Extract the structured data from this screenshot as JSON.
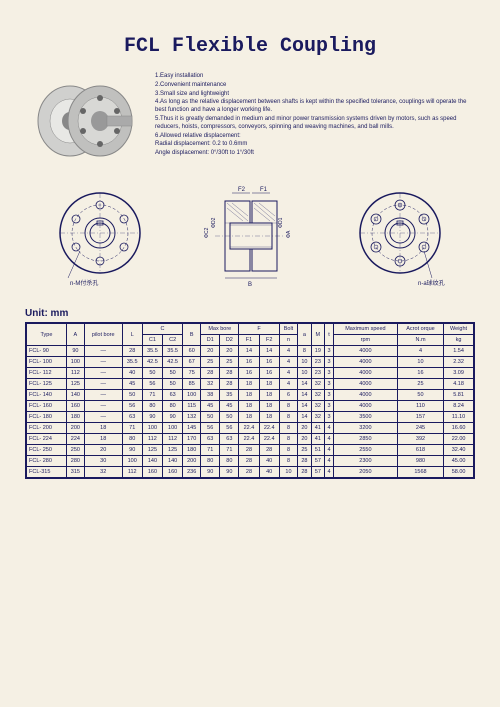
{
  "title": "FCL Flexible Coupling",
  "features": [
    "1.Easy installation",
    "2.Convenient maintenance",
    "3.Small size and lightweight",
    "4.As long as the relative displacement between shafts is kept within the specified tolerance, couplings will operate the best function and have a longer working life.",
    "5.Thus it is greatly demanded in medium and minor power transmission systems driven by motors, such as speed reducers, hoists, compressors, conveyors, spinning and weaving machines, and ball mills.",
    "6.Allowed relative displacement:",
    "Radial displacement: 0.2 to 0.6mm",
    "Angle displacement: 0°/30ft to 1°/30ft"
  ],
  "diagram_labels": {
    "left": "n-M付杀孔",
    "right": "n-a球纹孔",
    "f1": "F1",
    "f2": "F2"
  },
  "unit_label": "Unit: mm",
  "headers": {
    "type": "Type",
    "a_cap": "A",
    "pilot_bore": "pilot bore",
    "l_cap": "L",
    "c_cap": "C",
    "c1": "C1",
    "c2": "C2",
    "b_cap": "B",
    "max_bore": "Max bore",
    "d1": "D1",
    "d2": "D2",
    "f_cap": "F",
    "f1": "F1",
    "f2": "F2",
    "bolt": "Bolt",
    "n": "n",
    "a_low": "a",
    "m_cap": "M",
    "t": "t",
    "max_speed": "Maximum speed",
    "rpm": "rpm",
    "acrot": "Acrot orque",
    "nm": "N.m",
    "weight": "Weight",
    "kg": "kg"
  },
  "rows": [
    {
      "type": "FCL- 90",
      "A": "90",
      "pb": "—",
      "L": "28",
      "C1": "35.5",
      "C2": "35.5",
      "B": "60",
      "D1": "20",
      "D2": "20",
      "F1": "14",
      "F2": "14",
      "n": "4",
      "a": "8",
      "M": "19",
      "t": "3",
      "rpm": "4000",
      "nm": "4",
      "kg": "1.54"
    },
    {
      "type": "FCL- 100",
      "A": "100",
      "pb": "—",
      "L": "35.5",
      "C1": "42.5",
      "C2": "42.5",
      "B": "67",
      "D1": "25",
      "D2": "25",
      "F1": "16",
      "F2": "16",
      "n": "4",
      "a": "10",
      "M": "23",
      "t": "3",
      "rpm": "4000",
      "nm": "10",
      "kg": "2.32"
    },
    {
      "type": "FCL- 112",
      "A": "112",
      "pb": "—",
      "L": "40",
      "C1": "50",
      "C2": "50",
      "B": "75",
      "D1": "28",
      "D2": "28",
      "F1": "16",
      "F2": "16",
      "n": "4",
      "a": "10",
      "M": "23",
      "t": "3",
      "rpm": "4000",
      "nm": "16",
      "kg": "3.09"
    },
    {
      "type": "FCL- 125",
      "A": "125",
      "pb": "—",
      "L": "45",
      "C1": "56",
      "C2": "50",
      "B": "85",
      "D1": "32",
      "D2": "28",
      "F1": "18",
      "F2": "18",
      "n": "4",
      "a": "14",
      "M": "32",
      "t": "3",
      "rpm": "4000",
      "nm": "25",
      "kg": "4.18"
    },
    {
      "type": "FCL- 140",
      "A": "140",
      "pb": "—",
      "L": "50",
      "C1": "71",
      "C2": "63",
      "B": "100",
      "D1": "38",
      "D2": "35",
      "F1": "18",
      "F2": "18",
      "n": "6",
      "a": "14",
      "M": "32",
      "t": "3",
      "rpm": "4000",
      "nm": "50",
      "kg": "5.81"
    },
    {
      "type": "FCL- 160",
      "A": "160",
      "pb": "—",
      "L": "56",
      "C1": "80",
      "C2": "80",
      "B": "115",
      "D1": "45",
      "D2": "45",
      "F1": "18",
      "F2": "18",
      "n": "8",
      "a": "14",
      "M": "32",
      "t": "3",
      "rpm": "4000",
      "nm": "110",
      "kg": "8.24"
    },
    {
      "type": "FCL- 180",
      "A": "180",
      "pb": "—",
      "L": "63",
      "C1": "90",
      "C2": "90",
      "B": "132",
      "D1": "50",
      "D2": "50",
      "F1": "18",
      "F2": "18",
      "n": "8",
      "a": "14",
      "M": "32",
      "t": "3",
      "rpm": "3500",
      "nm": "157",
      "kg": "11.10"
    },
    {
      "type": "FCL- 200",
      "A": "200",
      "pb": "18",
      "L": "71",
      "C1": "100",
      "C2": "100",
      "B": "145",
      "D1": "56",
      "D2": "56",
      "F1": "22.4",
      "F2": "22.4",
      "n": "8",
      "a": "20",
      "M": "41",
      "t": "4",
      "rpm": "3200",
      "nm": "245",
      "kg": "16.60"
    },
    {
      "type": "FCL- 224",
      "A": "224",
      "pb": "18",
      "L": "80",
      "C1": "112",
      "C2": "112",
      "B": "170",
      "D1": "63",
      "D2": "63",
      "F1": "22.4",
      "F2": "22.4",
      "n": "8",
      "a": "20",
      "M": "41",
      "t": "4",
      "rpm": "2850",
      "nm": "392",
      "kg": "22.00"
    },
    {
      "type": "FCL- 250",
      "A": "250",
      "pb": "20",
      "L": "90",
      "C1": "125",
      "C2": "125",
      "B": "180",
      "D1": "71",
      "D2": "71",
      "F1": "28",
      "F2": "28",
      "n": "8",
      "a": "25",
      "M": "51",
      "t": "4",
      "rpm": "2550",
      "nm": "618",
      "kg": "32.40"
    },
    {
      "type": "FCL- 280",
      "A": "280",
      "pb": "30",
      "L": "100",
      "C1": "140",
      "C2": "140",
      "B": "200",
      "D1": "80",
      "D2": "80",
      "F1": "28",
      "F2": "40",
      "n": "8",
      "a": "28",
      "M": "57",
      "t": "4",
      "rpm": "2300",
      "nm": "980",
      "kg": "45.00"
    },
    {
      "type": "FCL-315",
      "A": "315",
      "pb": "32",
      "L": "112",
      "C1": "160",
      "C2": "160",
      "B": "236",
      "D1": "90",
      "D2": "90",
      "F1": "28",
      "F2": "40",
      "n": "10",
      "a": "28",
      "M": "57",
      "t": "4",
      "rpm": "2050",
      "nm": "1568",
      "kg": "58.00"
    }
  ]
}
